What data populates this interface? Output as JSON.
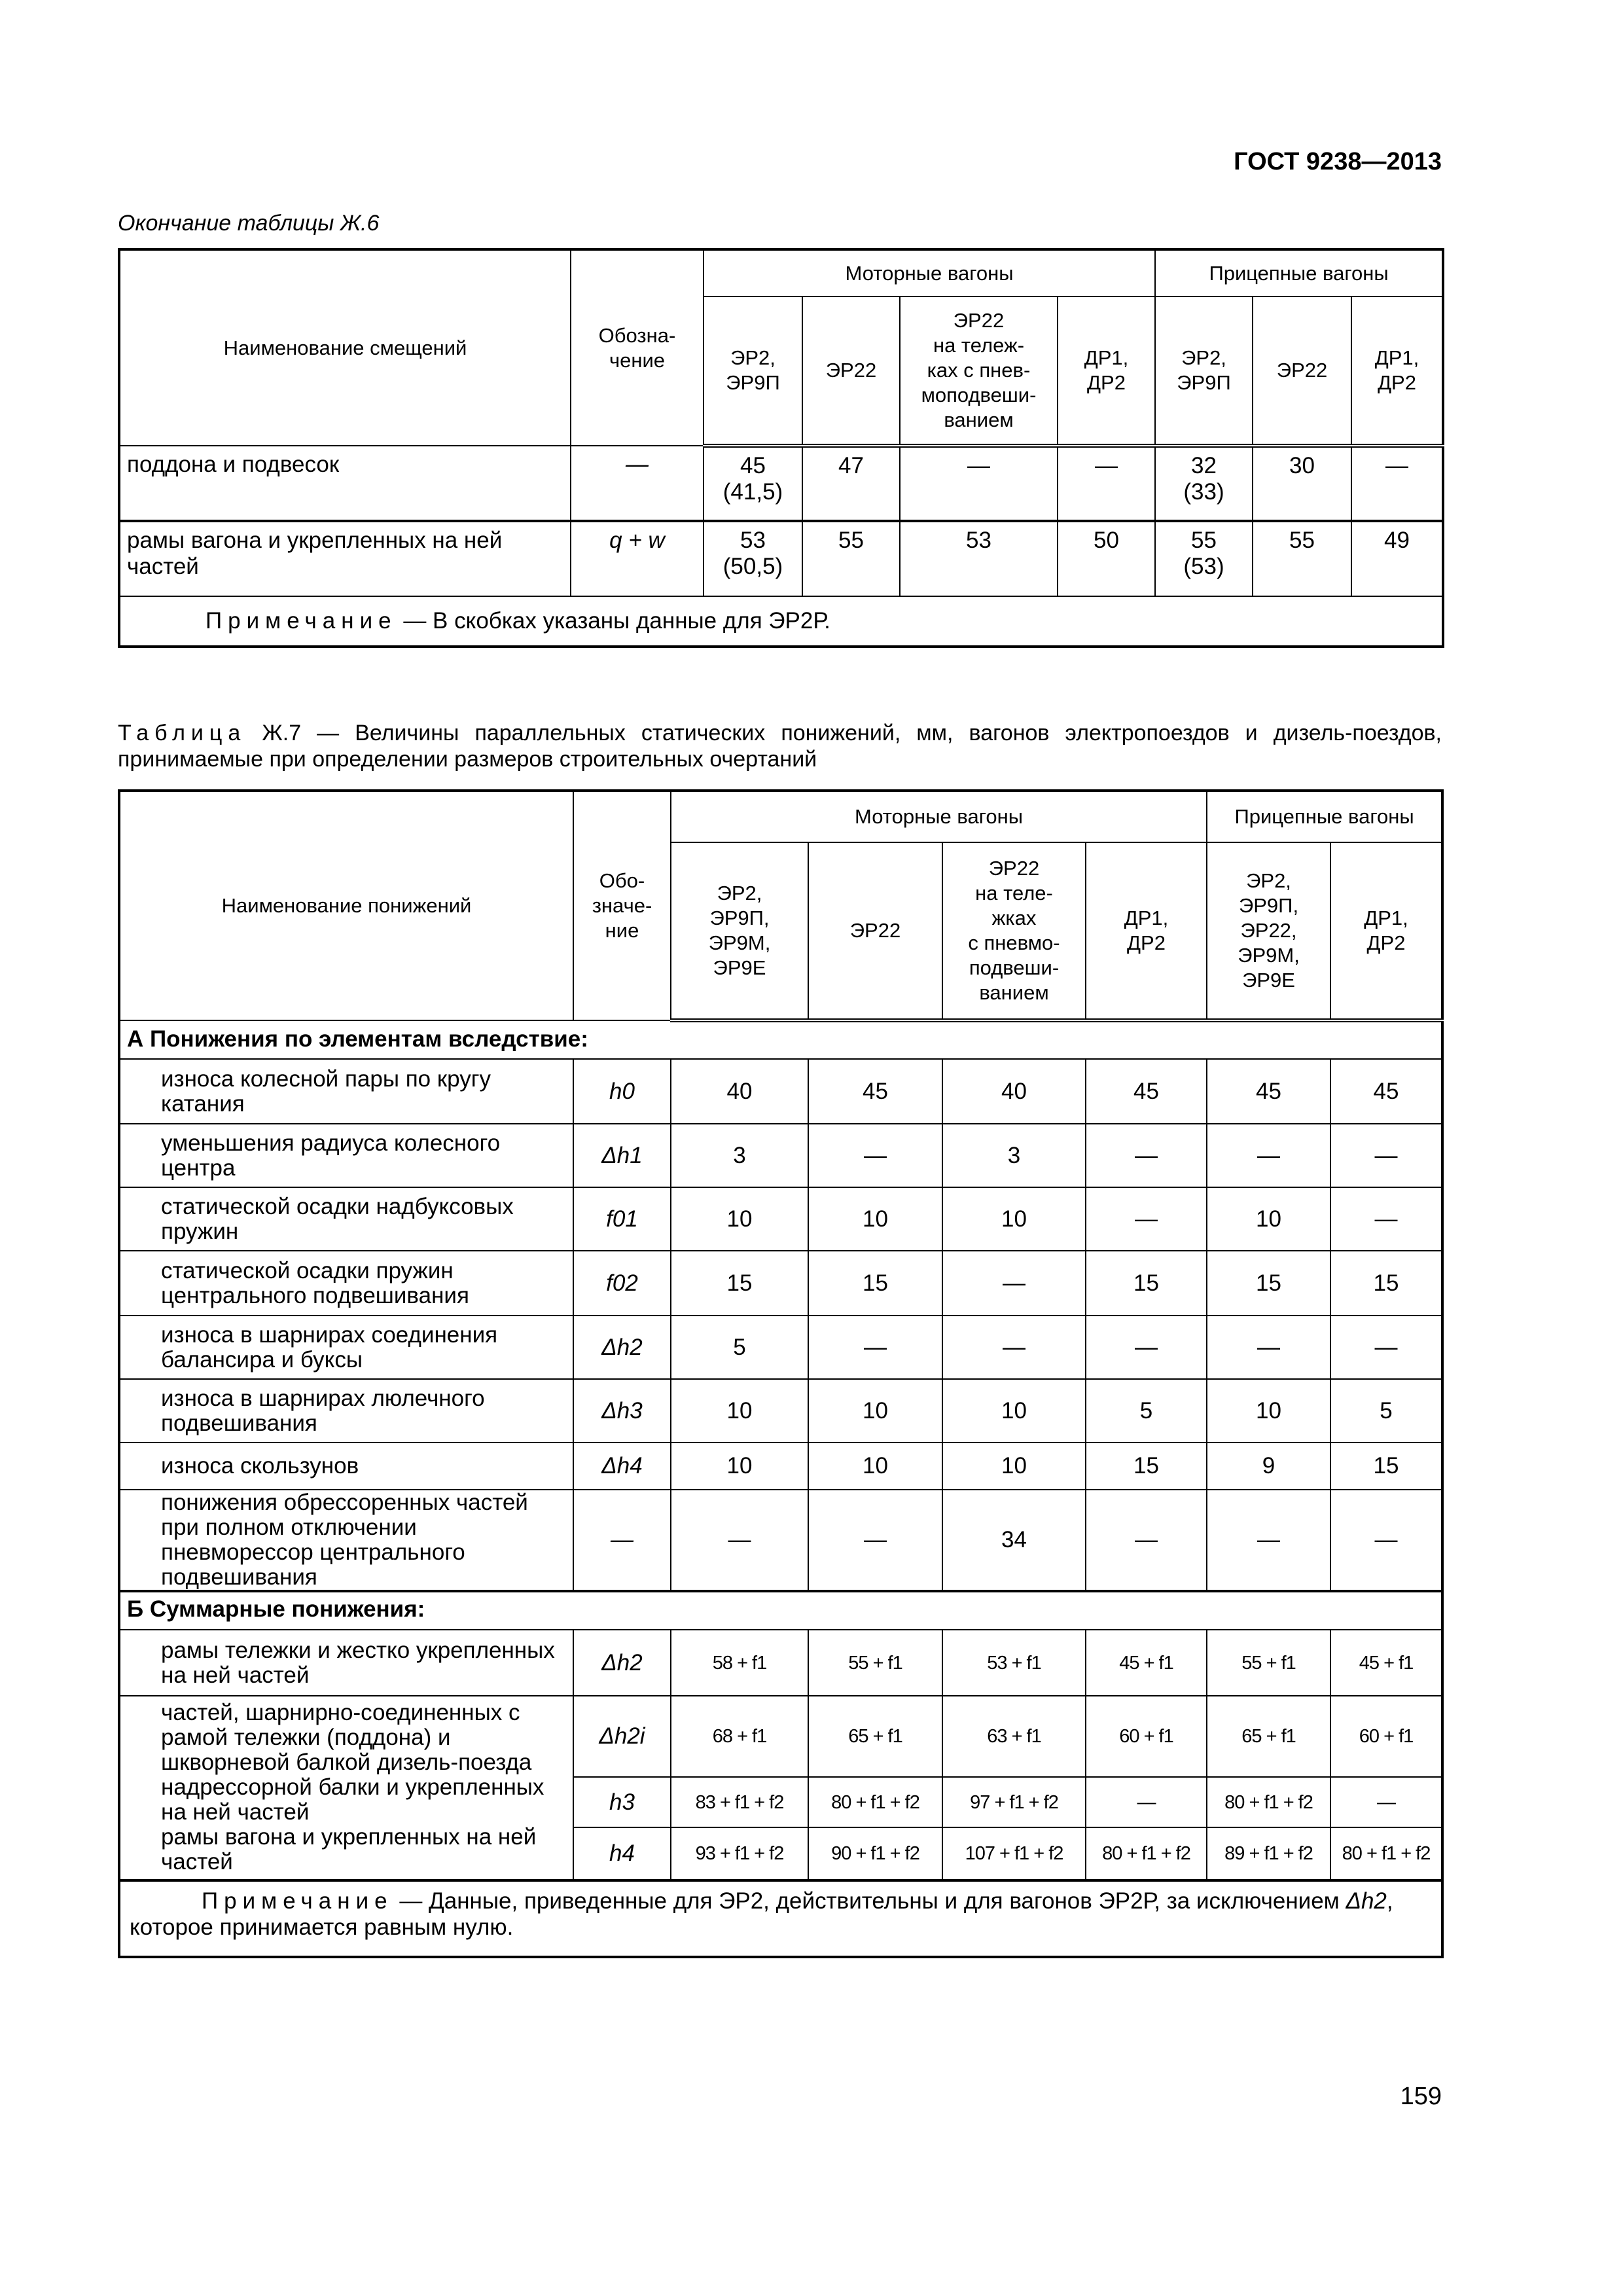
{
  "header": {
    "doc_code": "ГОСТ 9238—2013"
  },
  "table1": {
    "caption": "Окончание таблицы Ж.6",
    "col_name": "Наименование смещений",
    "col_symbol": "Обозна-\nчение",
    "group_motor": "Моторные вагоны",
    "group_trailer": "Прицепные вагоны",
    "subcols": [
      "ЭР2,\nЭР9П",
      "ЭР22",
      "ЭР22\nна тележ-\nках с пнев-\nмоподвеши-\nванием",
      "ДР1,\nДР2",
      "ЭР2,\nЭР9П",
      "ЭР22",
      "ДР1,\nДР2"
    ],
    "rows": [
      {
        "name": "поддона и подвесок",
        "symbol": "—",
        "values": [
          "45\n(41,5)",
          "47",
          "—",
          "—",
          "32\n(33)",
          "30",
          "—"
        ]
      },
      {
        "name": "рамы вагона и укрепленных на ней частей",
        "symbol": "q + w",
        "values": [
          "53\n(50,5)",
          "55",
          "53",
          "50",
          "55\n(53)",
          "55",
          "49"
        ]
      }
    ],
    "note_label": "Примечание",
    "note_text": " — В скобках указаны данные для ЭР2Р."
  },
  "table2": {
    "caption_label": "Таблица",
    "caption_text": " Ж.7 — Величины параллельных статических понижений, мм, вагонов электропоездов и дизель-поездов, принимаемые при определении размеров строительных очертаний",
    "col_name": "Наименование понижений",
    "col_symbol": "Обо-\nзначе-\nние",
    "group_motor": "Моторные вагоны",
    "group_trailer": "Прицепные вагоны",
    "subcols": [
      "ЭР2,\nЭР9П,\nЭР9М,\nЭР9Е",
      "ЭР22",
      "ЭР22\nна теле-\nжках\nс пневмо-\nподвеши-\nванием",
      "ДР1,\nДР2",
      "ЭР2,\nЭР9П,\nЭР22,\nЭР9М,\nЭР9Е",
      "ДР1,\nДР2"
    ],
    "section_a": "А Понижения по элементам вследствие:",
    "rows_a": [
      {
        "name": "износа колесной пары по кругу катания",
        "symbol": "h0",
        "values": [
          "40",
          "45",
          "40",
          "45",
          "45",
          "45"
        ]
      },
      {
        "name": "уменьшения радиуса колесного центра",
        "symbol": "Δh1",
        "values": [
          "3",
          "—",
          "3",
          "—",
          "—",
          "—"
        ]
      },
      {
        "name": "статической осадки надбуксовых пружин",
        "symbol": "f01",
        "values": [
          "10",
          "10",
          "10",
          "—",
          "10",
          "—"
        ]
      },
      {
        "name": "статической осадки пружин центрального подвешивания",
        "symbol": "f02",
        "values": [
          "15",
          "15",
          "—",
          "15",
          "15",
          "15"
        ]
      },
      {
        "name": "износа в шарнирах соединения балансира и буксы",
        "symbol": "Δh2",
        "values": [
          "5",
          "—",
          "—",
          "—",
          "—",
          "—"
        ]
      },
      {
        "name": "износа в шарнирах люлечного подвешивания",
        "symbol": "Δh3",
        "values": [
          "10",
          "10",
          "10",
          "5",
          "10",
          "5"
        ]
      },
      {
        "name": "износа скользунов",
        "symbol": "Δh4",
        "values": [
          "10",
          "10",
          "10",
          "15",
          "9",
          "15"
        ]
      },
      {
        "name": "понижения обрессоренных частей при полном отключении пневморессор центрального подвешивания",
        "symbol": "—",
        "values": [
          "—",
          "—",
          "34",
          "—",
          "—",
          "—"
        ]
      }
    ],
    "section_b": "Б Суммарные понижения:",
    "rows_b": [
      {
        "name": "рамы тележки и жестко укрепленных на ней частей",
        "symbol": "Δh2",
        "values": [
          "58 + f1",
          "55 + f1",
          "53 + f1",
          "45 + f1",
          "55 + f1",
          "45 + f1"
        ]
      }
    ],
    "group_b_names": [
      "частей, шарнирно-соединенных с рамой тележки (поддона) и шкворневой балкой дизель-поезда",
      "надрессорной балки и укрепленных на ней частей",
      "рамы вагона и укрепленных на ней частей"
    ],
    "group_b_rows": [
      {
        "symbol": "Δh2i",
        "values": [
          "68 + f1",
          "65 + f1",
          "63 + f1",
          "60 + f1",
          "65 + f1",
          "60 + f1"
        ]
      },
      {
        "symbol": "h3",
        "values": [
          "83 + f1 + f2",
          "80 + f1 + f2",
          "97 + f1 + f2",
          "—",
          "80 + f1 + f2",
          "—"
        ]
      },
      {
        "symbol": "h4",
        "values": [
          "93 + f1 + f2",
          "90 + f1 + f2",
          "107 + f1 + f2",
          "80 + f1 + f2",
          "89 + f1 + f2",
          "80 + f1 + f2"
        ]
      }
    ],
    "note_label": "Примечание",
    "note_text_1": " — Данные, приведенные для ЭР2, действительны и для вагонов ЭР2Р, за исключением ",
    "note_symbol": "Δh2",
    "note_text_2": ", которое принимается равным нулю."
  },
  "footer": {
    "page_number": "159"
  }
}
